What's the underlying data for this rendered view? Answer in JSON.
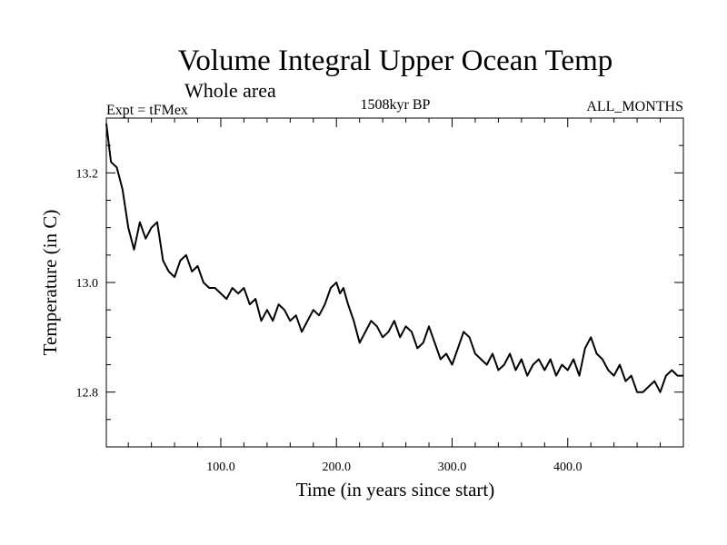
{
  "chart_data": {
    "type": "line",
    "title": "Volume Integral Upper Ocean Temp",
    "subtitle": "Whole area",
    "left_label": "Expt = tFMex",
    "center_label": "1508kyr BP",
    "right_label": "ALL_MONTHS",
    "xlabel": "Time (in years since start)",
    "ylabel": "Temperature (in C)",
    "xlim": [
      1,
      500
    ],
    "ylim": [
      12.7,
      13.3
    ],
    "xticks_labeled": [
      {
        "value": 100,
        "label": "100.0"
      },
      {
        "value": 200,
        "label": "200.0"
      },
      {
        "value": 300,
        "label": "300.0"
      },
      {
        "value": 400,
        "label": "400.0"
      }
    ],
    "yticks_labeled": [
      {
        "value": 12.8,
        "label": "12.8"
      },
      {
        "value": 13.0,
        "label": "13.0"
      },
      {
        "value": 13.2,
        "label": "13.2"
      }
    ],
    "grid": false,
    "series": [
      {
        "name": "Temperature",
        "color": "#000000",
        "x": [
          1,
          5,
          10,
          15,
          20,
          25,
          30,
          35,
          40,
          45,
          50,
          55,
          60,
          65,
          70,
          75,
          80,
          85,
          90,
          95,
          100,
          105,
          110,
          115,
          120,
          125,
          130,
          135,
          140,
          145,
          150,
          155,
          160,
          165,
          170,
          175,
          180,
          185,
          190,
          195,
          200,
          203,
          206,
          210,
          215,
          220,
          225,
          230,
          235,
          240,
          245,
          250,
          255,
          260,
          265,
          270,
          275,
          280,
          285,
          290,
          295,
          300,
          305,
          310,
          315,
          320,
          325,
          330,
          335,
          340,
          345,
          350,
          355,
          360,
          365,
          370,
          375,
          380,
          385,
          390,
          395,
          400,
          405,
          410,
          415,
          420,
          425,
          430,
          435,
          440,
          445,
          450,
          455,
          460,
          465,
          470,
          475,
          480,
          485,
          490,
          495,
          500
        ],
        "values": [
          13.29,
          13.22,
          13.21,
          13.17,
          13.1,
          13.06,
          13.11,
          13.08,
          13.1,
          13.11,
          13.04,
          13.02,
          13.01,
          13.04,
          13.05,
          13.02,
          13.03,
          13.0,
          12.99,
          12.99,
          12.98,
          12.97,
          12.99,
          12.98,
          12.99,
          12.96,
          12.97,
          12.93,
          12.95,
          12.93,
          12.96,
          12.95,
          12.93,
          12.94,
          12.91,
          12.93,
          12.95,
          12.94,
          12.96,
          12.99,
          13.0,
          12.98,
          12.99,
          12.96,
          12.93,
          12.89,
          12.91,
          12.93,
          12.92,
          12.9,
          12.91,
          12.93,
          12.9,
          12.92,
          12.91,
          12.88,
          12.89,
          12.92,
          12.89,
          12.86,
          12.87,
          12.85,
          12.88,
          12.91,
          12.9,
          12.87,
          12.86,
          12.85,
          12.87,
          12.84,
          12.85,
          12.87,
          12.84,
          12.86,
          12.83,
          12.85,
          12.86,
          12.84,
          12.86,
          12.83,
          12.85,
          12.84,
          12.86,
          12.83,
          12.88,
          12.9,
          12.87,
          12.86,
          12.84,
          12.83,
          12.85,
          12.82,
          12.83,
          12.8,
          12.8,
          12.81,
          12.82,
          12.8,
          12.83,
          12.84,
          12.83,
          12.83
        ]
      }
    ]
  }
}
